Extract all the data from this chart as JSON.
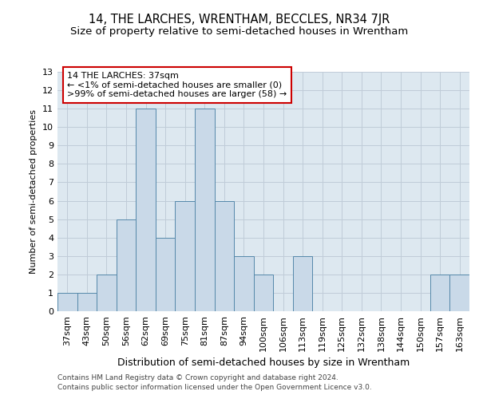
{
  "title": "14, THE LARCHES, WRENTHAM, BECCLES, NR34 7JR",
  "subtitle": "Size of property relative to semi-detached houses in Wrentham",
  "xlabel": "Distribution of semi-detached houses by size in Wrentham",
  "ylabel": "Number of semi-detached properties",
  "categories": [
    "37sqm",
    "43sqm",
    "50sqm",
    "56sqm",
    "62sqm",
    "69sqm",
    "75sqm",
    "81sqm",
    "87sqm",
    "94sqm",
    "100sqm",
    "106sqm",
    "113sqm",
    "119sqm",
    "125sqm",
    "132sqm",
    "138sqm",
    "144sqm",
    "150sqm",
    "157sqm",
    "163sqm"
  ],
  "values": [
    1,
    1,
    2,
    5,
    11,
    4,
    6,
    11,
    6,
    3,
    2,
    0,
    3,
    0,
    0,
    0,
    0,
    0,
    0,
    2,
    2
  ],
  "bar_color": "#c9d9e8",
  "bar_edge_color": "#5588aa",
  "annotation_line1": "14 THE LARCHES: 37sqm",
  "annotation_line2": "← <1% of semi-detached houses are smaller (0)",
  "annotation_line3": ">99% of semi-detached houses are larger (58) →",
  "annotation_box_color": "#ffffff",
  "annotation_box_edge": "#cc0000",
  "ylim": [
    0,
    13
  ],
  "yticks": [
    0,
    1,
    2,
    3,
    4,
    5,
    6,
    7,
    8,
    9,
    10,
    11,
    12,
    13
  ],
  "grid_color": "#c0ccd8",
  "background_color": "#dde8f0",
  "footer1": "Contains HM Land Registry data © Crown copyright and database right 2024.",
  "footer2": "Contains public sector information licensed under the Open Government Licence v3.0.",
  "title_fontsize": 10.5,
  "subtitle_fontsize": 9.5,
  "tick_fontsize": 8,
  "ylabel_fontsize": 8,
  "xlabel_fontsize": 9,
  "annotation_fontsize": 8,
  "footer_fontsize": 6.5
}
